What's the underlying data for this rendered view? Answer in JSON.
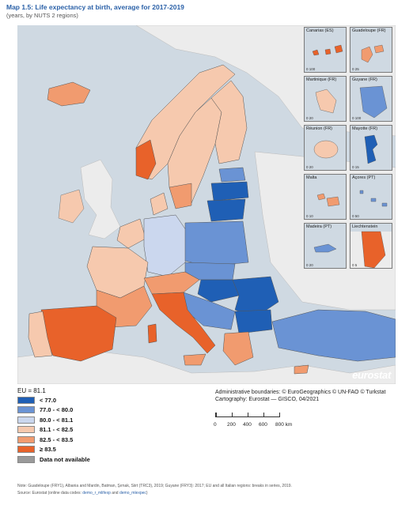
{
  "title": {
    "label": "Map 1.5:",
    "text": "Life expectancy at birth, average for 2017-2019"
  },
  "subtitle": "(years, by NUTS 2 regions)",
  "colors": {
    "sea": "#cfd9e2",
    "non_eu": "#ececec",
    "class_1": "#1f5fb5",
    "class_2": "#6a93d4",
    "class_3": "#cbd7ee",
    "class_4": "#f6c9ae",
    "class_5": "#f19b6f",
    "class_6": "#e8622a",
    "no_data": "#9a9a9a"
  },
  "insets": [
    {
      "name": "Canarias (ES)",
      "scale": "0   100"
    },
    {
      "name": "Guadeloupe (FR)",
      "scale": "0   25"
    },
    {
      "name": "Martinique (FR)",
      "scale": "0   20"
    },
    {
      "name": "Guyane (FR)",
      "scale": "0   100"
    },
    {
      "name": "Réunion (FR)",
      "scale": "0   20"
    },
    {
      "name": "Mayotte (FR)",
      "scale": "0   15"
    },
    {
      "name": "Malta",
      "scale": "0   10"
    },
    {
      "name": "Açores (PT)",
      "scale": "0   50"
    },
    {
      "name": "Madeira (PT)",
      "scale": "0   20"
    },
    {
      "name": "Liechtenstein",
      "scale": "0   5"
    }
  ],
  "logo": {
    "main": "eurostat",
    "mark": ""
  },
  "legend": {
    "eu_value": "EU = 81.1",
    "items": [
      {
        "label": "< 77.0",
        "color_key": "class_1"
      },
      {
        "label": "77.0 - < 80.0",
        "color_key": "class_2"
      },
      {
        "label": "80.0 - < 81.1",
        "color_key": "class_3"
      },
      {
        "label": "81.1 - < 82.5",
        "color_key": "class_4"
      },
      {
        "label": "82.5 - < 83.5",
        "color_key": "class_5"
      },
      {
        "label": "≥ 83.5",
        "color_key": "class_6"
      },
      {
        "label": "Data not available",
        "color_key": "no_data"
      }
    ]
  },
  "credits": {
    "line1": "Administrative boundaries: © EuroGeographics © UN-FAO © Turkstat",
    "line2": "Cartography: Eurostat — GISCO, 04/2021"
  },
  "scale": {
    "labels": [
      "0",
      "200",
      "400",
      "600",
      "800 km"
    ]
  },
  "note": "Note: Guadeloupe (FRY1), Albania and Mardin, Batman, Şırnak, Siirt (TRC3), 2019; Guyane (FRY3): 2017; EU and all Italian regions: breaks in series, 2019.",
  "source": {
    "prefix": "Source: Eurostat (online data codes: ",
    "code1": "demo_r_mlifexp",
    "and": " and ",
    "code2": "demo_mlexpec",
    "suffix": ")"
  }
}
